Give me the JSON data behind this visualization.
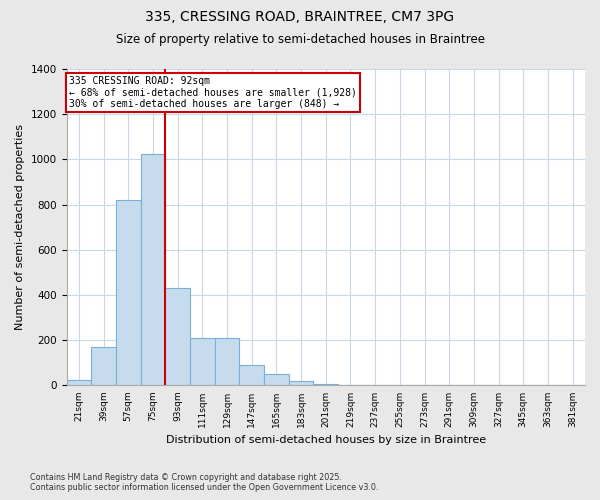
{
  "title": "335, CRESSING ROAD, BRAINTREE, CM7 3PG",
  "subtitle": "Size of property relative to semi-detached houses in Braintree",
  "xlabel": "Distribution of semi-detached houses by size in Braintree",
  "ylabel": "Number of semi-detached properties",
  "annotation_title": "335 CRESSING ROAD: 92sqm",
  "annotation_line1": "← 68% of semi-detached houses are smaller (1,928)",
  "annotation_line2": "30% of semi-detached houses are larger (848) →",
  "footnote1": "Contains HM Land Registry data © Crown copyright and database right 2025.",
  "footnote2": "Contains public sector information licensed under the Open Government Licence v3.0.",
  "categories": [
    "21sqm",
    "39sqm",
    "57sqm",
    "75sqm",
    "93sqm",
    "111sqm",
    "129sqm",
    "147sqm",
    "165sqm",
    "183sqm",
    "201sqm",
    "219sqm",
    "237sqm",
    "255sqm",
    "273sqm",
    "291sqm",
    "309sqm",
    "327sqm",
    "345sqm",
    "363sqm",
    "381sqm"
  ],
  "values": [
    25,
    170,
    820,
    1025,
    430,
    210,
    210,
    90,
    50,
    20,
    5,
    2,
    0,
    0,
    0,
    0,
    0,
    0,
    0,
    0,
    0
  ],
  "bar_color": "#c6dcee",
  "bar_edge_color": "#7bafd4",
  "red_line_x": 3.5,
  "red_line_color": "#cc0000",
  "annotation_box_color": "#cc0000",
  "background_color": "#e8e8e8",
  "plot_bg_color": "#ffffff",
  "ylim": [
    0,
    1400
  ],
  "yticks": [
    0,
    200,
    400,
    600,
    800,
    1000,
    1200,
    1400
  ],
  "grid_color": "#c8d8e8"
}
